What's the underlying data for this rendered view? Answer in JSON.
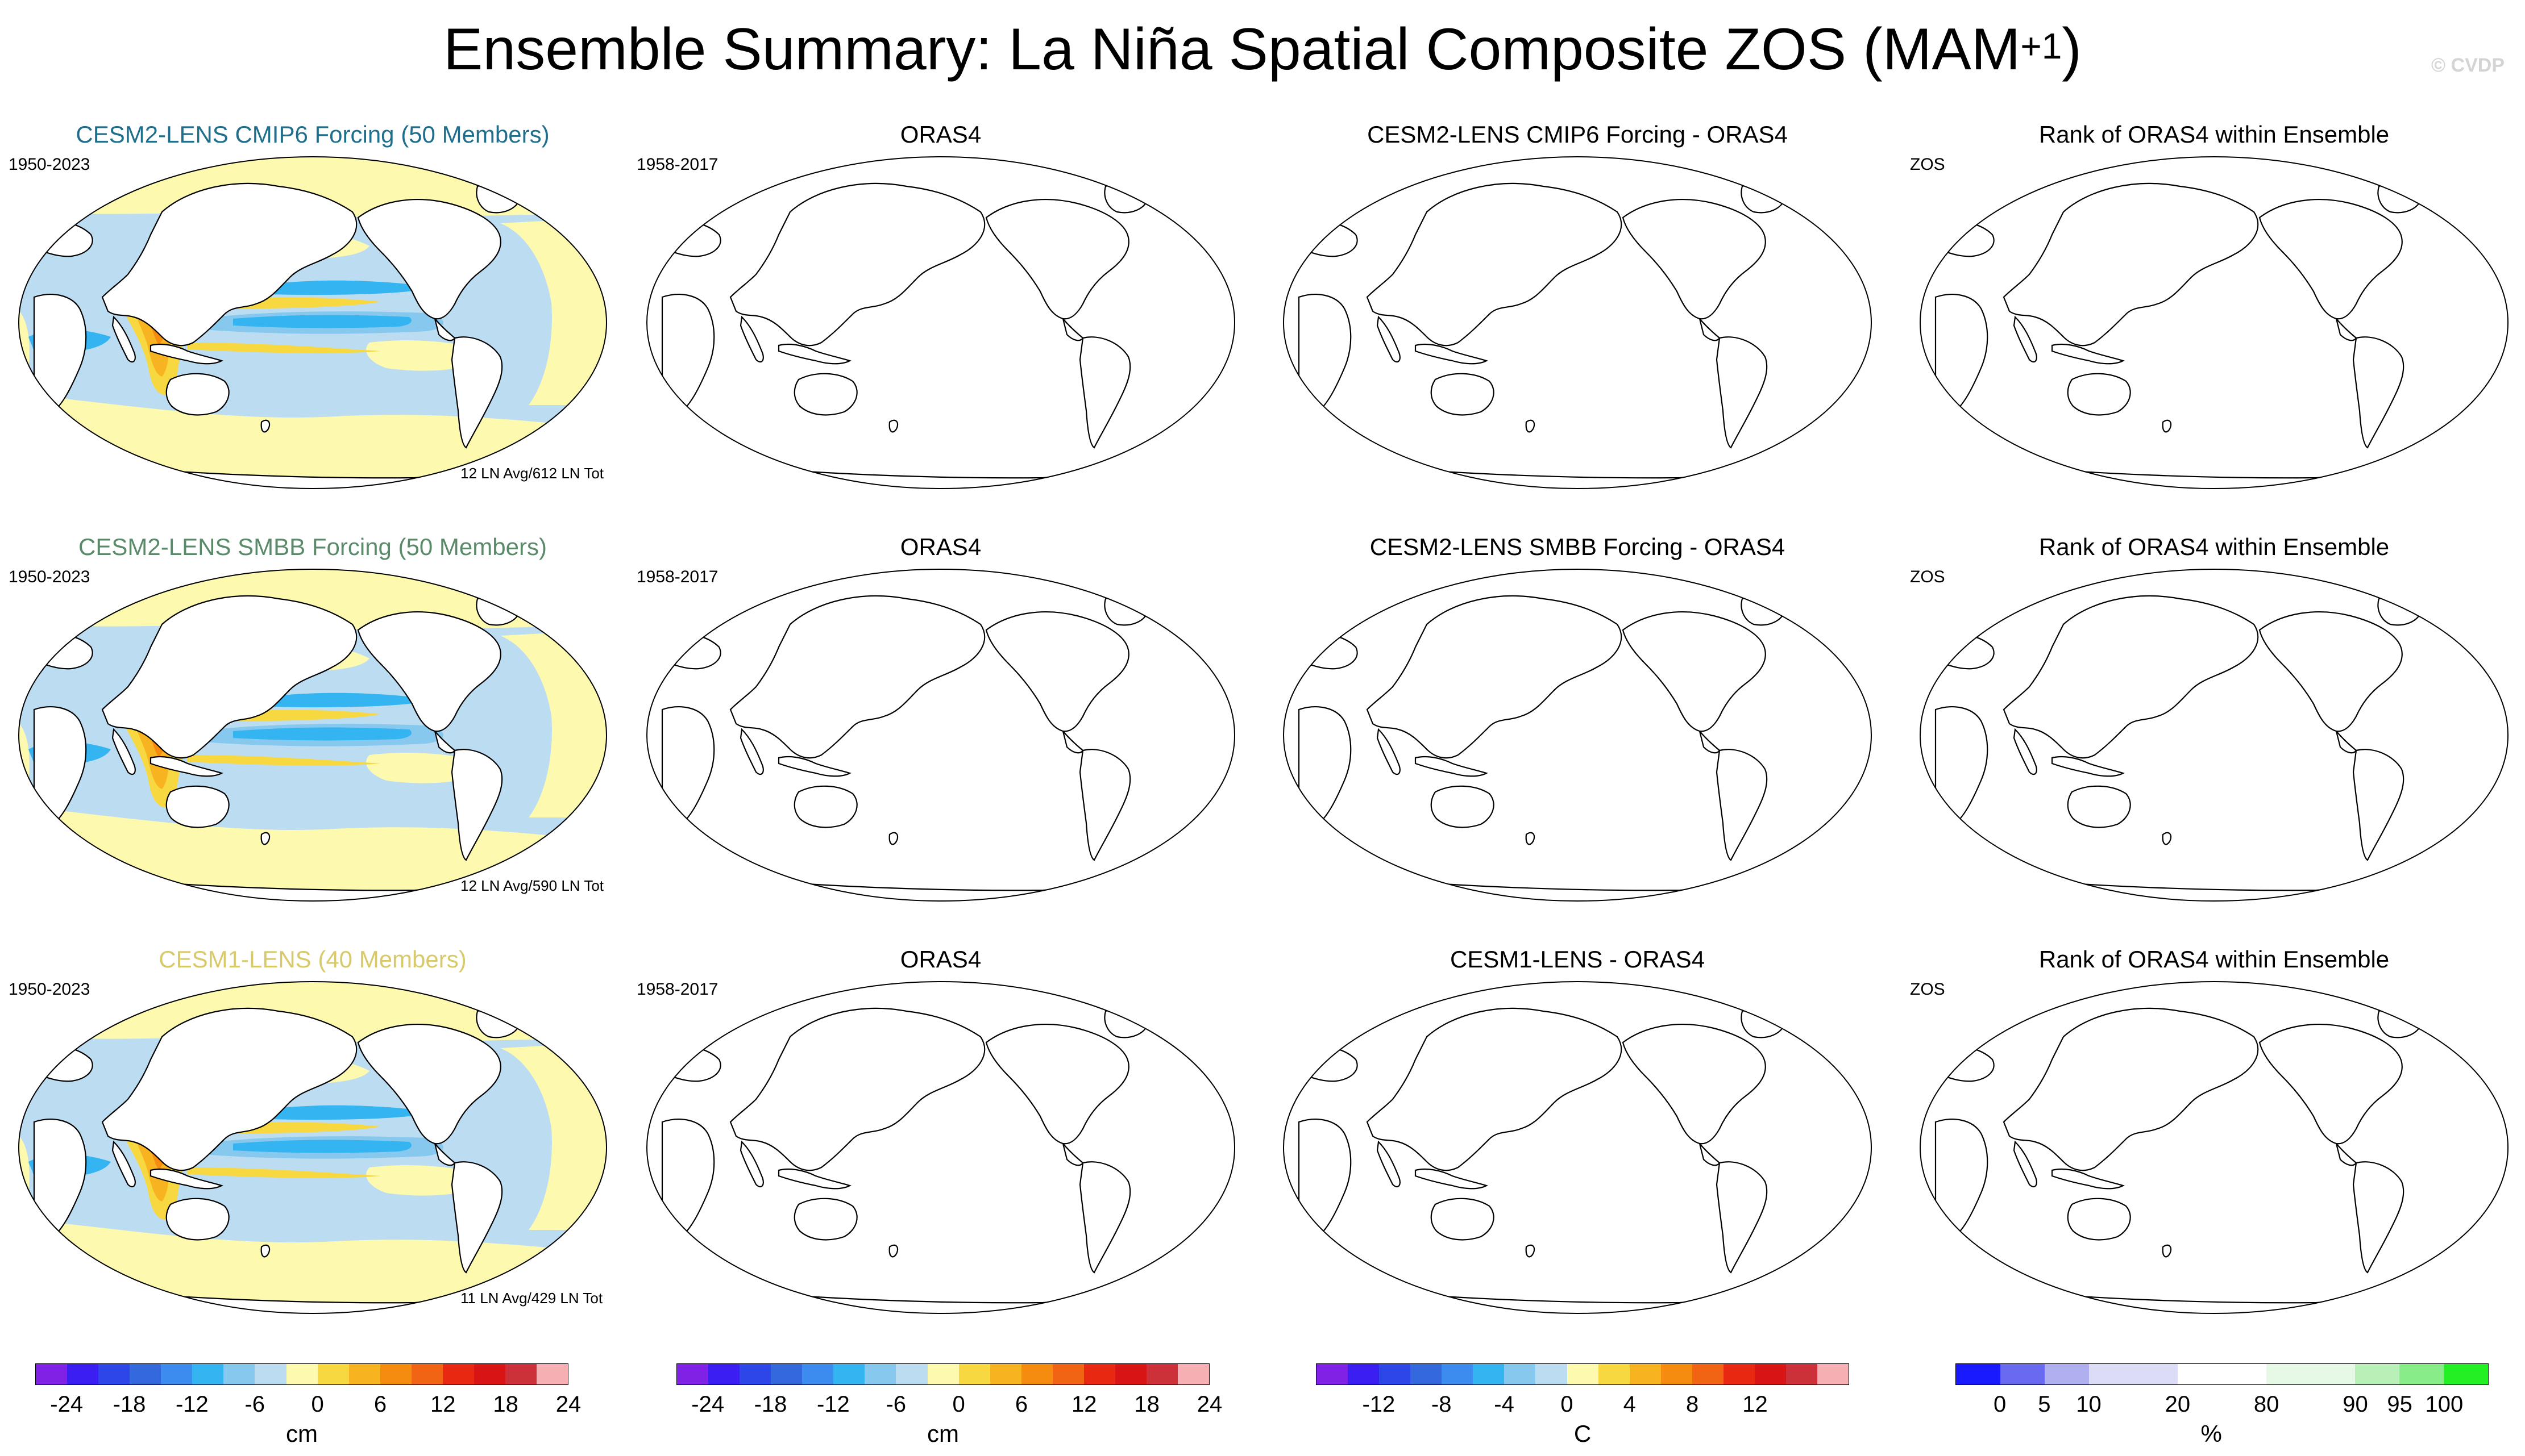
{
  "title": {
    "main": "Ensemble Summary: La Niña Spatial Composite ZOS (MAM",
    "sup": "+1",
    "close": ")"
  },
  "watermark": "© CVDP",
  "colors": {
    "land": "#ffffff",
    "coast": "#000000",
    "cesm2_cmip6": "#1f6e8c",
    "cesm2_smbb": "#5a8a6a",
    "cesm1": "#d8c96a"
  },
  "rows": [
    {
      "ensemble_title": "CESM2-LENS CMIP6 Forcing (50 Members)",
      "ensemble_period": "1950-2023",
      "ensemble_note": "12 LN Avg/612 LN Tot",
      "obs_title": "ORAS4",
      "obs_period": "1958-2017",
      "diff_title": "CESM2-LENS CMIP6 Forcing - ORAS4",
      "rank_title": "Rank of ORAS4 within Ensemble",
      "rank_var": "ZOS"
    },
    {
      "ensemble_title": "CESM2-LENS SMBB Forcing (50 Members)",
      "ensemble_period": "1950-2023",
      "ensemble_note": "12 LN Avg/590 LN Tot",
      "obs_title": "ORAS4",
      "obs_period": "1958-2017",
      "diff_title": "CESM2-LENS SMBB Forcing - ORAS4",
      "rank_title": "Rank of ORAS4 within Ensemble",
      "rank_var": "ZOS"
    },
    {
      "ensemble_title": "CESM1-LENS (40 Members)",
      "ensemble_period": "1950-2023",
      "ensemble_note": "11 LN Avg/429 LN Tot",
      "obs_title": "ORAS4",
      "obs_period": "1958-2017",
      "diff_title": "CESM1-LENS - ORAS4",
      "rank_title": "Rank of ORAS4 within Ensemble",
      "rank_var": "ZOS"
    }
  ],
  "colorbars": [
    {
      "unit": "cm",
      "colors": [
        "#7f22e6",
        "#3b1ff2",
        "#2c46e8",
        "#3369dc",
        "#3c8cf0",
        "#34b4f0",
        "#86c8ee",
        "#bcdcf2",
        "#fdfab0",
        "#f8d840",
        "#f8b420",
        "#f58c10",
        "#f06414",
        "#e82810",
        "#d81414",
        "#cc3038",
        "#f6b0b4"
      ],
      "ticks": [
        {
          "label": "-24",
          "boundary": 1
        },
        {
          "label": "-18",
          "boundary": 3
        },
        {
          "label": "-12",
          "boundary": 5
        },
        {
          "label": "-6",
          "boundary": 7
        },
        {
          "label": "0",
          "boundary": 9
        },
        {
          "label": "6",
          "boundary": 11
        },
        {
          "label": "12",
          "boundary": 13
        },
        {
          "label": "18",
          "boundary": 15
        },
        {
          "label": "24",
          "boundary": 17
        }
      ]
    },
    {
      "unit": "cm",
      "colors": [
        "#7f22e6",
        "#3b1ff2",
        "#2c46e8",
        "#3369dc",
        "#3c8cf0",
        "#34b4f0",
        "#86c8ee",
        "#bcdcf2",
        "#fdfab0",
        "#f8d840",
        "#f8b420",
        "#f58c10",
        "#f06414",
        "#e82810",
        "#d81414",
        "#cc3038",
        "#f6b0b4"
      ],
      "ticks": [
        {
          "label": "-24",
          "boundary": 1
        },
        {
          "label": "-18",
          "boundary": 3
        },
        {
          "label": "-12",
          "boundary": 5
        },
        {
          "label": "-6",
          "boundary": 7
        },
        {
          "label": "0",
          "boundary": 9
        },
        {
          "label": "6",
          "boundary": 11
        },
        {
          "label": "12",
          "boundary": 13
        },
        {
          "label": "18",
          "boundary": 15
        },
        {
          "label": "24",
          "boundary": 17
        }
      ]
    },
    {
      "unit": "C",
      "colors": [
        "#7f22e6",
        "#3b1ff2",
        "#2c46e8",
        "#3369dc",
        "#3c8cf0",
        "#34b4f0",
        "#86c8ee",
        "#bcdcf2",
        "#fdfab0",
        "#f8d840",
        "#f8b420",
        "#f58c10",
        "#f06414",
        "#e82810",
        "#d81414",
        "#cc3038",
        "#f6b0b4"
      ],
      "ticks": [
        {
          "label": "-12",
          "boundary": 2
        },
        {
          "label": "-8",
          "boundary": 4
        },
        {
          "label": "-4",
          "boundary": 6
        },
        {
          "label": "0",
          "boundary": 8
        },
        {
          "label": "4",
          "boundary": 10
        },
        {
          "label": "8",
          "boundary": 12
        },
        {
          "label": "12",
          "boundary": 14
        }
      ]
    },
    {
      "unit": "%",
      "colors": [
        "#1a1aff",
        "#6a6af0",
        "#b0b0f0",
        "#dcdcf6",
        "#dcdcf6",
        "#ffffff",
        "#ffffff",
        "#e6f8e6",
        "#e6f8e6",
        "#b8f0b8",
        "#88ec88",
        "#22f022"
      ],
      "ticks": [
        {
          "label": "0",
          "boundary": 1
        },
        {
          "label": "5",
          "boundary": 2
        },
        {
          "label": "10",
          "boundary": 3
        },
        {
          "label": "20",
          "boundary": 5
        },
        {
          "label": "80",
          "boundary": 7
        },
        {
          "label": "90",
          "boundary": 9
        },
        {
          "label": "95",
          "boundary": 10
        },
        {
          "label": "100",
          "boundary": 11
        }
      ]
    }
  ],
  "chart_data": [
    {
      "type": "heatmap",
      "panel": "CESM2-LENS CMIP6 Forcing (50 Members)",
      "variable": "ZOS",
      "units": "cm",
      "field_summary": {
        "west_tropical_pacific_max": 12,
        "equatorial_east_pacific_min": -12,
        "background_range": [
          -6,
          6
        ]
      }
    },
    {
      "type": "heatmap",
      "panel": "ORAS4",
      "variable": "ZOS",
      "values": []
    },
    {
      "type": "heatmap",
      "panel": "CESM2-LENS CMIP6 Forcing - ORAS4",
      "values": []
    },
    {
      "type": "heatmap",
      "panel": "Rank of ORAS4 within Ensemble",
      "values": []
    },
    {
      "type": "heatmap",
      "panel": "CESM2-LENS SMBB Forcing (50 Members)",
      "variable": "ZOS",
      "units": "cm",
      "field_summary": {
        "west_tropical_pacific_max": 12,
        "equatorial_east_pacific_min": -12,
        "background_range": [
          -6,
          6
        ]
      }
    },
    {
      "type": "heatmap",
      "panel": "ORAS4",
      "variable": "ZOS",
      "values": []
    },
    {
      "type": "heatmap",
      "panel": "CESM2-LENS SMBB Forcing - ORAS4",
      "values": []
    },
    {
      "type": "heatmap",
      "panel": "Rank of ORAS4 within Ensemble",
      "values": []
    },
    {
      "type": "heatmap",
      "panel": "CESM1-LENS (40 Members)",
      "variable": "ZOS",
      "units": "cm",
      "field_summary": {
        "west_tropical_pacific_max": 12,
        "equatorial_east_pacific_min": -12,
        "background_range": [
          -6,
          6
        ]
      }
    },
    {
      "type": "heatmap",
      "panel": "ORAS4",
      "variable": "ZOS",
      "values": []
    },
    {
      "type": "heatmap",
      "panel": "CESM1-LENS - ORAS4",
      "values": []
    },
    {
      "type": "heatmap",
      "panel": "Rank of ORAS4 within Ensemble",
      "values": []
    }
  ]
}
